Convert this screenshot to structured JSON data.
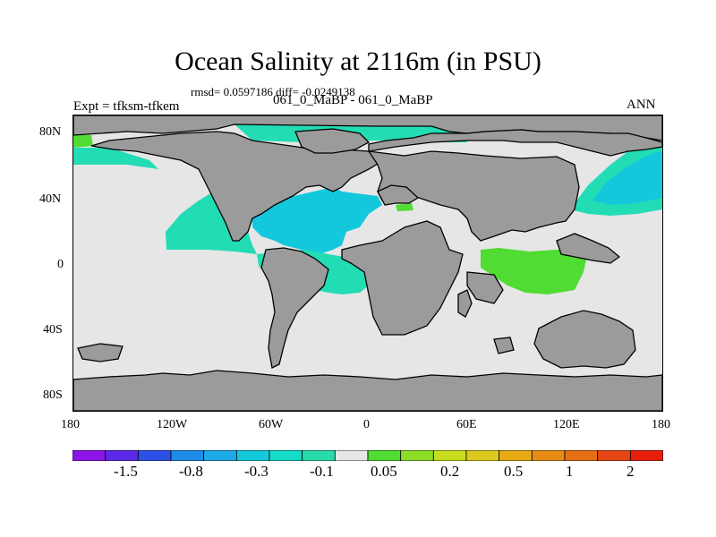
{
  "title": "Ocean Salinity at 2116m (in PSU)",
  "stats": "rmsd= 0.0597186 diff= -0.0249138",
  "expt_label": "Expt = tfksm-tfkem",
  "runs_label": "061_0_MaBP - 061_0_MaBP",
  "season_label": "ANN",
  "y_axis": {
    "ticks": [
      "80N",
      "40N",
      "0",
      "40S",
      "80S"
    ]
  },
  "x_axis": {
    "ticks": [
      "180",
      "120W",
      "60W",
      "0",
      "60E",
      "120E",
      "180"
    ]
  },
  "colors": {
    "land": "#9b9b9b",
    "ocean_near_zero": "#e6e6e6",
    "teal": "#22dcb4",
    "cyan": "#14c8dc",
    "blue_light": "#1ea0e6",
    "blue_deep": "#2d6ee6",
    "green": "#50dc32",
    "yellow_green": "#a0dc28"
  },
  "colorbar": {
    "colors": [
      "#8c14e6",
      "#5a28e6",
      "#2d50e6",
      "#1e8ce6",
      "#1eaae6",
      "#14c8dc",
      "#14dcc8",
      "#28dcaa",
      "#e6e6e6",
      "#50dc32",
      "#8cdc28",
      "#c8dc1e",
      "#dcc81e",
      "#e6aa14",
      "#e68c14",
      "#e66e14",
      "#e64614",
      "#e61e0a"
    ],
    "labels": [
      "-1.5",
      "-0.8",
      "-0.3",
      "-0.1",
      "0.05",
      "0.2",
      "0.5",
      "1",
      "2"
    ]
  }
}
